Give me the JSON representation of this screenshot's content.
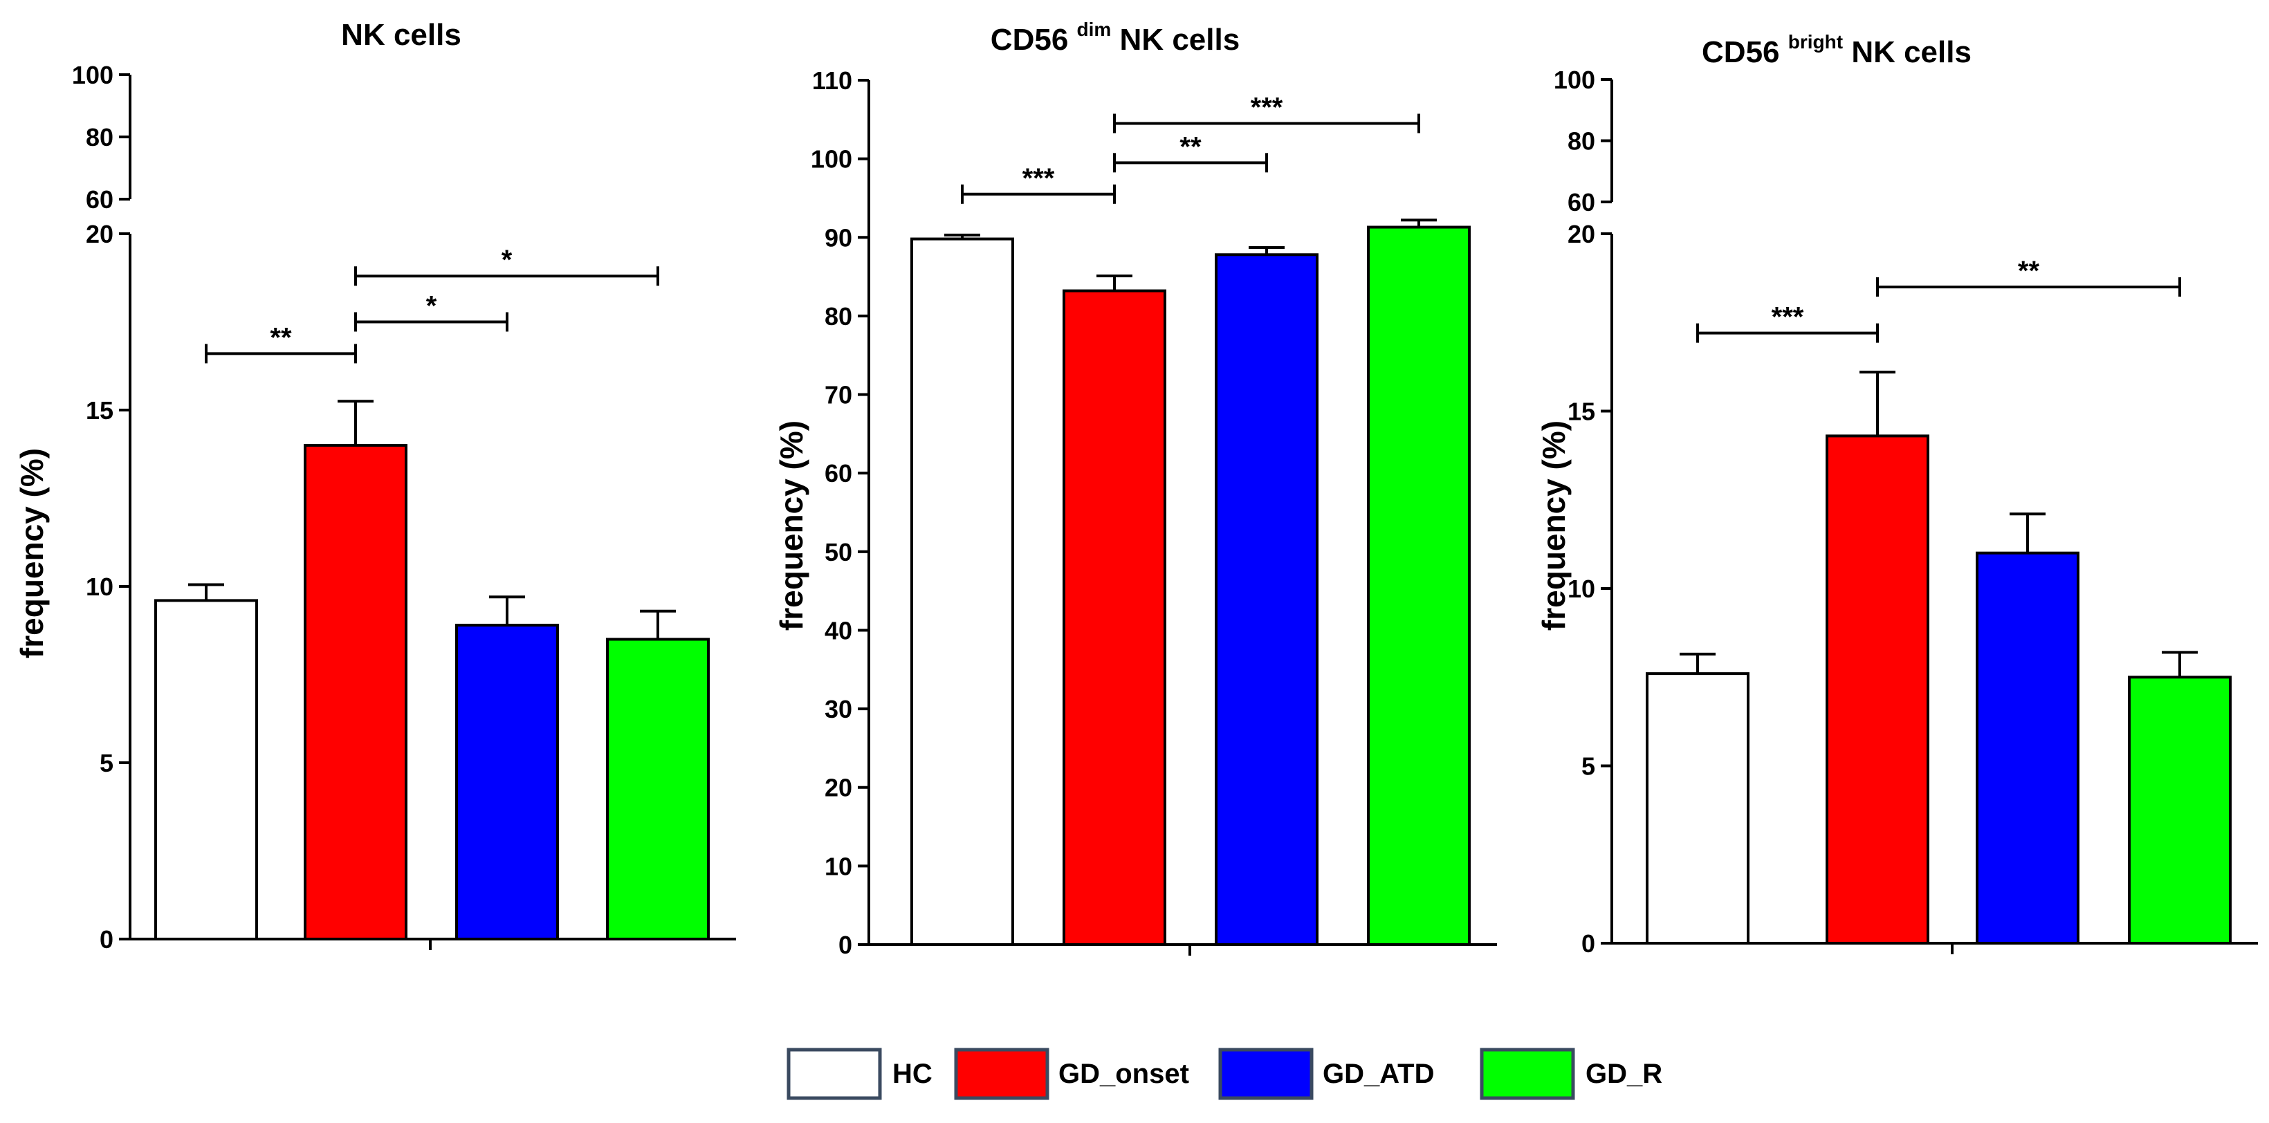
{
  "legend": [
    {
      "label": "HC",
      "color": "#ffffff"
    },
    {
      "label": "GD_onset",
      "color": "#ff0000"
    },
    {
      "label": "GD_ATD",
      "color": "#0000ff"
    },
    {
      "label": "GD_R",
      "color": "#00ff00"
    }
  ],
  "chart_data": [
    {
      "type": "bar",
      "title": "NK cells",
      "title_sup": "",
      "ylabel": "frequency (%)",
      "categories": [
        "HC",
        "GD_onset",
        "GD_ATD",
        "GD_R"
      ],
      "values": [
        9.6,
        14.0,
        8.9,
        8.5
      ],
      "errors": [
        0.45,
        1.25,
        0.8,
        0.8
      ],
      "lower_axis": {
        "ylim": [
          0,
          20
        ],
        "ticks": [
          "0",
          "5",
          "10",
          "15",
          "20"
        ]
      },
      "upper_axis": {
        "ylim": [
          60,
          100
        ],
        "ticks": [
          "60",
          "80",
          "100"
        ]
      },
      "significance": [
        {
          "from": 0,
          "to": 1,
          "label": "**",
          "y": 16.6
        },
        {
          "from": 1,
          "to": 2,
          "label": "*",
          "y": 17.5
        },
        {
          "from": 1,
          "to": 3,
          "label": "*",
          "y": 18.8
        }
      ]
    },
    {
      "type": "bar",
      "title": "CD56",
      "title_sup": "dim",
      "title_rest": "NK cells",
      "ylabel": "frequency (%)",
      "categories": [
        "HC",
        "GD_onset",
        "GD_ATD",
        "GD_R"
      ],
      "values": [
        89.8,
        83.2,
        87.8,
        91.3
      ],
      "errors": [
        0.5,
        1.9,
        0.9,
        0.9
      ],
      "axis": {
        "ylim": [
          0,
          110
        ],
        "ticks": [
          "0",
          "10",
          "20",
          "30",
          "40",
          "50",
          "60",
          "70",
          "80",
          "90",
          "100",
          "110"
        ]
      },
      "significance": [
        {
          "from": 0,
          "to": 1,
          "label": "***",
          "y": 95.5
        },
        {
          "from": 1,
          "to": 2,
          "label": "**",
          "y": 99.5
        },
        {
          "from": 1,
          "to": 3,
          "label": "***",
          "y": 104.5
        }
      ]
    },
    {
      "type": "bar",
      "title": "CD56",
      "title_sup": "bright",
      "title_rest": "NK cells",
      "ylabel": "frequency (%)",
      "categories": [
        "HC",
        "GD_onset",
        "GD_ATD",
        "GD_R"
      ],
      "values": [
        7.6,
        14.3,
        11.0,
        7.5
      ],
      "errors": [
        0.55,
        1.8,
        1.1,
        0.7
      ],
      "lower_axis": {
        "ylim": [
          0,
          20
        ],
        "ticks": [
          "0",
          "5",
          "10",
          "15",
          "20"
        ]
      },
      "upper_axis": {
        "ylim": [
          60,
          100
        ],
        "ticks": [
          "60",
          "80",
          "100"
        ]
      },
      "significance": [
        {
          "from": 0,
          "to": 1,
          "label": "***",
          "y": 17.2
        },
        {
          "from": 1,
          "to": 3,
          "label": "**",
          "y": 18.5
        }
      ]
    }
  ]
}
